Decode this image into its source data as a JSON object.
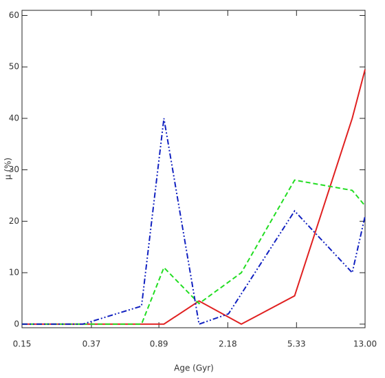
{
  "chart_data": {
    "type": "line",
    "xlabel": "Age (Gyr)",
    "ylabel": "μ (%)",
    "xscale": "log",
    "xlim": [
      0.15,
      13
    ],
    "ylim": [
      -0.7,
      61
    ],
    "xticks": [
      0.15,
      0.37,
      0.89,
      2.18,
      5.33,
      {
        "value": 13,
        "label": "13.00"
      }
    ],
    "yticks": [
      0,
      10,
      20,
      30,
      40,
      50,
      60
    ],
    "series": [
      {
        "color": "#e02020",
        "style": "solid",
        "x": [
          0.15,
          0.95,
          1.5,
          2.6,
          5.2,
          11,
          13
        ],
        "values": [
          0,
          0,
          4.5,
          0,
          5.5,
          40,
          49.5
        ]
      },
      {
        "color": "#22dd22",
        "style": "dashed",
        "x": [
          0.15,
          0.71,
          0.95,
          1.5,
          2.6,
          5.2,
          11,
          13
        ],
        "values": [
          0,
          0,
          11,
          4,
          10,
          28,
          26,
          23
        ]
      },
      {
        "color": "#1020c0",
        "style": "dashdotdot",
        "x": [
          0.15,
          0.33,
          0.71,
          0.95,
          1.5,
          2.2,
          5.2,
          11,
          13
        ],
        "values": [
          0,
          0,
          3.5,
          40,
          0,
          2,
          22,
          10,
          21
        ]
      }
    ]
  }
}
